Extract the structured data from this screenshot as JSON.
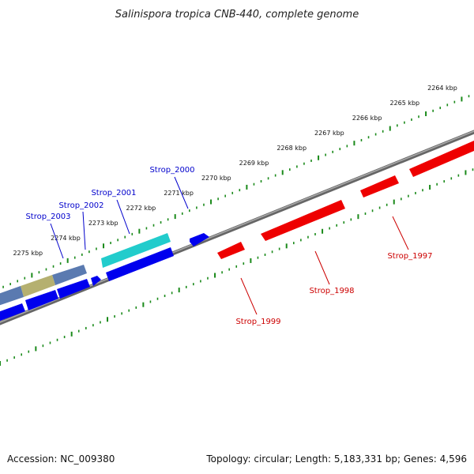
{
  "title": "Salinispora tropica CNB-440, complete genome",
  "footer": {
    "accession": "Accession: NC_009380",
    "topology": "Topology: circular; Length: 5,183,331 bp; Genes: 4,596"
  },
  "colors": {
    "forward_gene": "#0000ee",
    "reverse_gene": "#ee0000",
    "tick": "#1a8a1a",
    "backbone": "#777777",
    "forward_label": "#0000cc",
    "reverse_label": "#cc0000"
  },
  "scale_labels": [
    "2264 kbp",
    "2265 kbp",
    "2266 kbp",
    "2267 kbp",
    "2268 kbp",
    "2269 kbp",
    "2270 kbp",
    "2271 kbp",
    "2272 kbp",
    "2273 kbp",
    "2274 kbp",
    "2275 kbp"
  ],
  "genes": [
    {
      "name": "Strop_1997",
      "strand": "reverse"
    },
    {
      "name": "Strop_1998",
      "strand": "reverse"
    },
    {
      "name": "Strop_1999",
      "strand": "reverse"
    },
    {
      "name": "Strop_2000",
      "strand": "forward"
    },
    {
      "name": "Strop_2001",
      "strand": "forward"
    },
    {
      "name": "Strop_2002",
      "strand": "forward"
    },
    {
      "name": "Strop_2003",
      "strand": "forward"
    }
  ]
}
